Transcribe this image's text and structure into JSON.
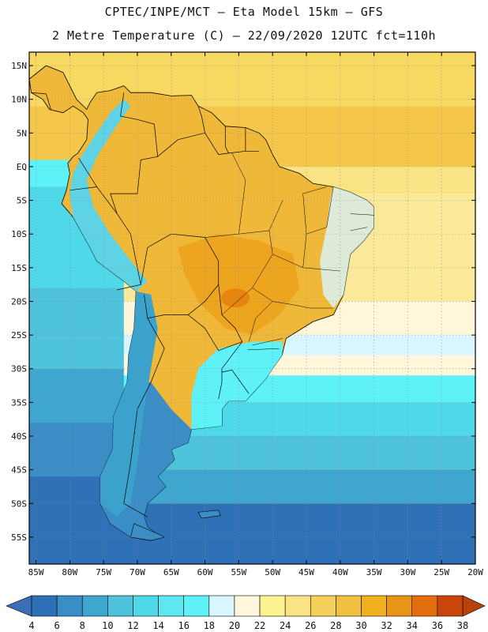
{
  "title": {
    "line1": "CPTEC/INPE/MCT –  Eta Model 15km – GFS",
    "line2": "2 Metre Temperature (C) – 22/09/2020 12UTC fct=110h"
  },
  "map": {
    "lon_range": [
      -86,
      -20
    ],
    "lat_range": [
      -59,
      17
    ],
    "lat_ticks": [
      {
        "lat": 15,
        "label": "15N"
      },
      {
        "lat": 10,
        "label": "10N"
      },
      {
        "lat": 5,
        "label": "5N"
      },
      {
        "lat": 0,
        "label": "EQ"
      },
      {
        "lat": -5,
        "label": "5S"
      },
      {
        "lat": -10,
        "label": "10S"
      },
      {
        "lat": -15,
        "label": "15S"
      },
      {
        "lat": -20,
        "label": "20S"
      },
      {
        "lat": -25,
        "label": "25S"
      },
      {
        "lat": -30,
        "label": "30S"
      },
      {
        "lat": -35,
        "label": "35S"
      },
      {
        "lat": -40,
        "label": "40S"
      },
      {
        "lat": -45,
        "label": "45S"
      },
      {
        "lat": -50,
        "label": "50S"
      },
      {
        "lat": -55,
        "label": "55S"
      }
    ],
    "lon_ticks": [
      {
        "lon": -85,
        "label": "85W"
      },
      {
        "lon": -80,
        "label": "80W"
      },
      {
        "lon": -75,
        "label": "75W"
      },
      {
        "lon": -70,
        "label": "70W"
      },
      {
        "lon": -65,
        "label": "65W"
      },
      {
        "lon": -60,
        "label": "60W"
      },
      {
        "lon": -55,
        "label": "55W"
      },
      {
        "lon": -50,
        "label": "50W"
      },
      {
        "lon": -45,
        "label": "45W"
      },
      {
        "lon": -40,
        "label": "40W"
      },
      {
        "lon": -35,
        "label": "35W"
      },
      {
        "lon": -30,
        "label": "30W"
      },
      {
        "lon": -25,
        "label": "25W"
      },
      {
        "lon": -20,
        "label": "20W"
      }
    ],
    "gridlines": true,
    "ocean_bands": [
      {
        "lat_top": 17,
        "lat_bottom": 9,
        "color": "#f7d860"
      },
      {
        "lat_top": 9,
        "lat_bottom": 0,
        "color": "#f4c74a"
      },
      {
        "lat_top": 0,
        "lat_bottom": -4,
        "color": "#f9e384"
      },
      {
        "lat_top": -4,
        "lat_bottom": -20,
        "color": "#fbe99a"
      },
      {
        "lat_top": -20,
        "lat_bottom": -25,
        "color": "#fff6dc"
      },
      {
        "lat_top": -25,
        "lat_bottom": -28,
        "color": "#d8f6ff"
      },
      {
        "lat_top": -28,
        "lat_bottom": -31,
        "color": "#fff6dc"
      },
      {
        "lat_top": -31,
        "lat_bottom": -35,
        "color": "#5ef1f7"
      },
      {
        "lat_top": -35,
        "lat_bottom": -40,
        "color": "#4fd9e8"
      },
      {
        "lat_top": -40,
        "lat_bottom": -45,
        "color": "#4fc3db"
      },
      {
        "lat_top": -45,
        "lat_bottom": -50,
        "color": "#3fa6cf"
      },
      {
        "lat_top": -50,
        "lat_bottom": -59,
        "color": "#2f71b7"
      }
    ],
    "pacific_bands": [
      {
        "lat_top": 1,
        "lat_bottom": -3,
        "color": "#5ef1f7"
      },
      {
        "lat_top": -3,
        "lat_bottom": -18,
        "color": "#4fd9e8"
      },
      {
        "lat_top": -18,
        "lat_bottom": -30,
        "color": "#4fc3db"
      },
      {
        "lat_top": -30,
        "lat_bottom": -38,
        "color": "#3fa6cf"
      },
      {
        "lat_top": -38,
        "lat_bottom": -46,
        "color": "#3b8ec5"
      },
      {
        "lat_top": -46,
        "lat_bottom": -59,
        "color": "#2f71b7"
      }
    ],
    "land_colors": {
      "warm": "#f0b838",
      "hot": "#eda41e",
      "hotspot": "#e8850c",
      "andes_north": "#5ed3e6",
      "andes_south": "#3aa2cc",
      "patagonia": "#3b8ec5",
      "south_brazil": "#5ef1f7",
      "northeast": "#d8f6ff"
    }
  },
  "colorbar": {
    "colors": [
      "#2f71b7",
      "#3b8ec5",
      "#3fa6cf",
      "#4fc3db",
      "#4fd9e8",
      "#5ee7f1",
      "#5ef1f7",
      "#d8f6ff",
      "#fff6dc",
      "#fdf391",
      "#f9e384",
      "#f4d05a",
      "#f0c040",
      "#f0b020",
      "#e89418",
      "#e36e0e",
      "#c9460a"
    ],
    "left_arrow_color": "#3a6fb5",
    "right_arrow_color": "#b9430c",
    "labels": [
      "4",
      "6",
      "8",
      "10",
      "12",
      "14",
      "16",
      "18",
      "20",
      "22",
      "24",
      "26",
      "28",
      "30",
      "32",
      "34",
      "36",
      "38"
    ]
  }
}
